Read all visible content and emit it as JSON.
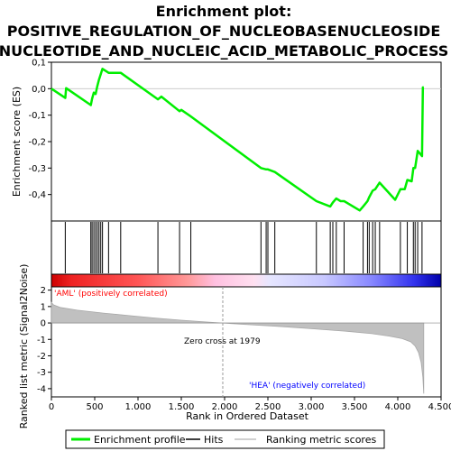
{
  "chart_data": {
    "type": "line",
    "title_lines": [
      "Enrichment plot:",
      "POSITIVE_REGULATION_OF_NUCLEOBASENUCLEOSIDE",
      "NUCLEOTIDE_AND_NUCLEIC_ACID_METABOLIC_PROCESS"
    ],
    "es_panel": {
      "ylabel": "Enrichment score (ES)",
      "ylim": [
        -0.5,
        0.1
      ],
      "yticks": [
        "0,1",
        "0,0",
        "-0,1",
        "-0,2",
        "-0,3",
        "-0,4"
      ],
      "ytick_values": [
        0.1,
        0.0,
        -0.1,
        -0.2,
        -0.3,
        -0.4
      ],
      "series": [
        {
          "name": "Enrichment profile",
          "color": "#00ee00",
          "x": [
            0,
            160,
            170,
            455,
            470,
            490,
            510,
            530,
            550,
            570,
            590,
            660,
            800,
            1230,
            1270,
            1480,
            1500,
            1610,
            2420,
            2480,
            2500,
            2580,
            3060,
            3220,
            3250,
            3290,
            3340,
            3380,
            3560,
            3600,
            3650,
            3670,
            3710,
            3740,
            3790,
            3970,
            4030,
            4080,
            4110,
            4160,
            4180,
            4200,
            4230,
            4280,
            4290,
            4300
          ],
          "y": [
            0.0,
            -0.035,
            0.002,
            -0.062,
            -0.038,
            -0.015,
            -0.02,
            0.01,
            0.035,
            0.055,
            0.075,
            0.06,
            0.06,
            -0.04,
            -0.03,
            -0.085,
            -0.08,
            -0.105,
            -0.3,
            -0.305,
            -0.305,
            -0.315,
            -0.425,
            -0.445,
            -0.43,
            -0.415,
            -0.425,
            -0.425,
            -0.46,
            -0.445,
            -0.425,
            -0.41,
            -0.385,
            -0.38,
            -0.355,
            -0.42,
            -0.38,
            -0.38,
            -0.345,
            -0.35,
            -0.3,
            -0.3,
            -0.235,
            -0.255,
            0.005,
            0.005
          ]
        }
      ]
    },
    "hits": [
      160,
      455,
      470,
      490,
      510,
      530,
      550,
      570,
      590,
      660,
      800,
      1230,
      1480,
      1610,
      2420,
      2480,
      2500,
      2580,
      3060,
      3220,
      3250,
      3290,
      3380,
      3600,
      3650,
      3670,
      3710,
      3740,
      3790,
      4030,
      4110,
      4180,
      4200,
      4230,
      4280
    ],
    "ranked_panel": {
      "ylabel": "Ranked list metric (Signal2Noise)",
      "ylim": [
        -4.5,
        2.2
      ],
      "yticks": [
        "2",
        "1",
        "0",
        "-1",
        "-2",
        "-3",
        "-4"
      ],
      "ytick_values": [
        2,
        1,
        0,
        -1,
        -2,
        -3,
        -4
      ],
      "curve_x": [
        0,
        25,
        100,
        300,
        600,
        900,
        1200,
        1500,
        1800,
        1979,
        2200,
        2600,
        3000,
        3400,
        3700,
        3900,
        4050,
        4150,
        4200,
        4240,
        4270,
        4290,
        4300
      ],
      "curve_y": [
        1.25,
        1.1,
        0.95,
        0.78,
        0.6,
        0.45,
        0.3,
        0.17,
        0.06,
        0.0,
        -0.08,
        -0.2,
        -0.35,
        -0.5,
        -0.65,
        -0.8,
        -0.95,
        -1.15,
        -1.4,
        -1.8,
        -2.4,
        -3.3,
        -4.3
      ],
      "fill_color": "#c0c0c0",
      "zero_cross_label": "Zero cross at 1979",
      "zero_cross": 1979,
      "pos_label": "'AML' (positively correlated)",
      "neg_label": "'HEA' (negatively correlated)",
      "pos_color": "#ff0000",
      "neg_color": "#0000ff"
    },
    "xaxis": {
      "xlabel": "Rank in Ordered Dataset",
      "xlim": [
        0,
        4500
      ],
      "xticks": [
        "0",
        "500",
        "1.000",
        "1.500",
        "2.000",
        "2.500",
        "3.000",
        "3.500",
        "4.000",
        "4.500"
      ],
      "xtick_values": [
        0,
        500,
        1000,
        1500,
        2000,
        2500,
        3000,
        3500,
        4000,
        4500
      ]
    },
    "legend": {
      "placement": "bottom",
      "items": [
        {
          "label": "Enrichment profile",
          "color": "#00ee00"
        },
        {
          "label": "Hits",
          "color": "#000000"
        },
        {
          "label": "Ranking metric scores",
          "color": "#c0c0c0"
        }
      ]
    },
    "grid": false
  }
}
